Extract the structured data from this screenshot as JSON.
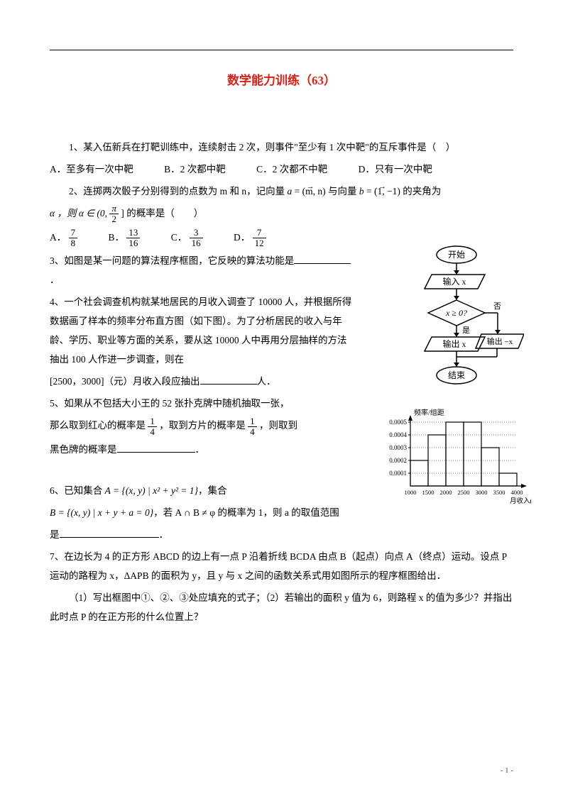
{
  "title": "数学能力训练（63）",
  "q1": {
    "text": "1、某入伍新兵在打靶训练中，连续射击 2 次，则事件\"至少有 1 次中靶\"的互斥事件是（　）",
    "A": "A．至多有一次中靶",
    "B": "B．2 次都中靶",
    "C": "C．2 次都不中靶",
    "D": "D．只有一次中靶"
  },
  "q2": {
    "lead": "2、连掷两次骰子分别得到的点数为 m 和 n，记向量 ",
    "vec_a": "a",
    "eq_a": " = (m, n) 与向量 ",
    "vec_b": "b",
    "eq_b": " = (1, −1) 的夹角为",
    "alpha": "α ，则 α ∈ (0, ",
    "pi": "π",
    "two": "2",
    "tail": "] 的概率是（　　）",
    "A_lbl": "A．",
    "A_num": "7",
    "A_den": "8",
    "B_lbl": "B．",
    "B_num": "13",
    "B_den": "16",
    "C_lbl": "C．",
    "C_num": "3",
    "C_den": "16",
    "D_lbl": "D．",
    "D_num": "7",
    "D_den": "12"
  },
  "q3": "3、如图是某一问题的算法程序框图，它反映的算法功能是",
  "q4": {
    "p1": "4、一个社会调查机构就某地居民的月收入调查了 10000 人，并根据所得数据画了样本的频率分布直方图（如下图）。为了分析居民的收入与年龄、学历、职业等方面的关系，要从这 10000 人中再用分层抽样的方法抽出 100 人作进一步调查，则在",
    "p2_a": "[2500，3000]（元）月收入段应抽出",
    "p2_b": "人．"
  },
  "q5": {
    "a": "5、如果从不包括大小王的 52 张扑克牌中随机抽取一张，",
    "b1": "那么取到红心的概率是",
    "b2": "，取到方片的概率是",
    "b3": "，则取到",
    "num": "1",
    "den": "4",
    "c": "黑色牌的概率是",
    "d": "．"
  },
  "q6": {
    "a": "6、已知集合 ",
    "setA": "A = {(x, y) | x² + y² = 1}",
    "b": "，集合",
    "setB": "B = {(x, y) | x + y + a = 0}",
    "c": "，若 A ∩ B ≠ φ 的概率为 1，则 a 的取值范围",
    "d": "是",
    "e": "．"
  },
  "q7": {
    "p1": "7、在边长为 4 的正方形 ABCD 的边上有一点 P 沿着折线 BCDA 由点 B（起点）向点 A（终点）运动。设点 P 运动的路程为 x，ΔAPB 的面积为 y，且 y 与 x 之间的函数关系式用如图所示的程序框图给出．",
    "p2": "（1）写出框图中①、②、③处应填充的式子；（2）若输出的面积 y 值为 6，则路程 x 的值为多少？并指出此时点 P 的在正方形的什么位置上？"
  },
  "flowchart": {
    "start": "开始",
    "input": "输入 x",
    "cond": "x ≥ 0?",
    "no": "否",
    "yes": "是",
    "out1": "输出 x",
    "out2": "输出 −x",
    "end": "结束"
  },
  "histogram": {
    "ylabel": "频率/组距",
    "xlabel": "月收入(元)",
    "yticks": [
      "0.0005",
      "0.0004",
      "0.0003",
      "0.0002",
      "0.0001"
    ],
    "xticks": [
      "1000",
      "1500",
      "2000",
      "2500",
      "3000",
      "3500",
      "4000"
    ],
    "bars": [
      0.0002,
      0.0004,
      0.0005,
      0.0005,
      0.0003,
      0.0001
    ]
  },
  "pagenum": "- 1 -"
}
